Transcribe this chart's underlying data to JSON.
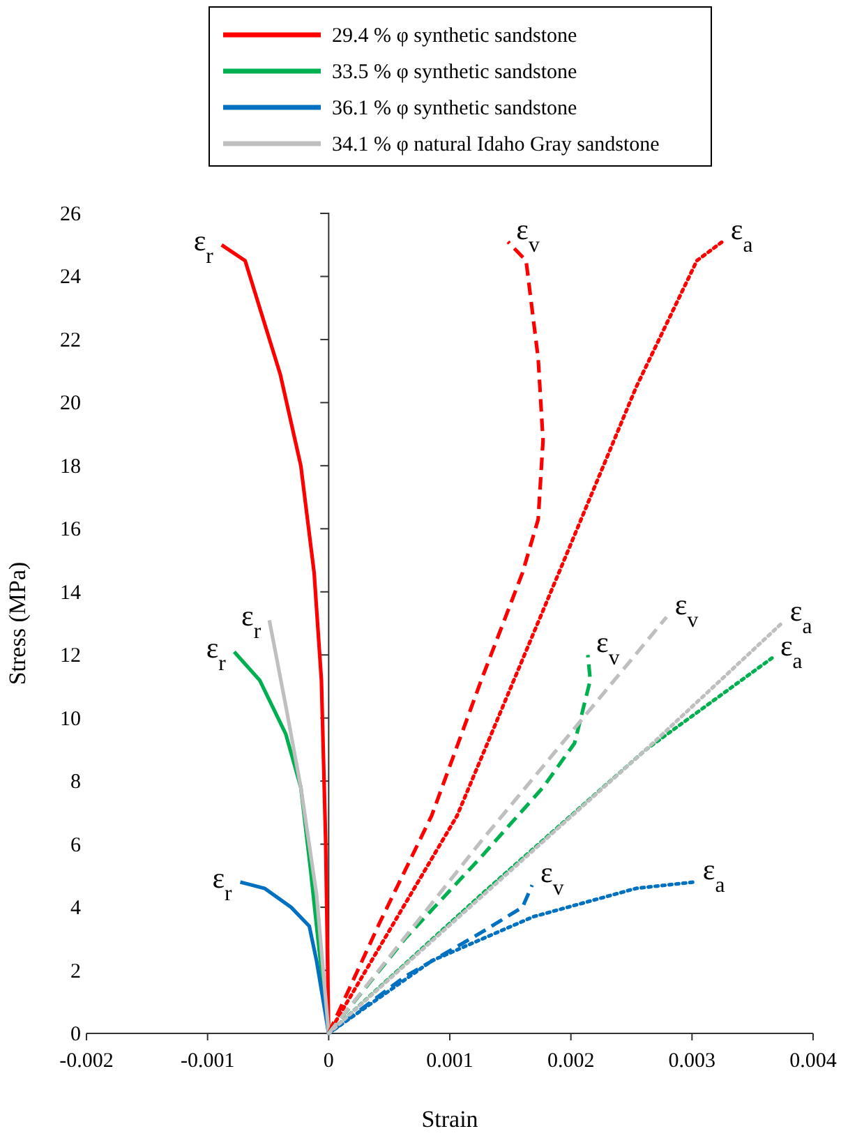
{
  "chart_data": {
    "type": "line",
    "xlabel": "Strain",
    "ylabel": "Stress (MPa)",
    "xlim": [
      -0.002,
      0.004
    ],
    "ylim": [
      0,
      26
    ],
    "xticks": [
      -0.002,
      -0.001,
      0,
      0.001,
      0.002,
      0.003,
      0.004
    ],
    "yticks": [
      0,
      2,
      4,
      6,
      8,
      10,
      12,
      14,
      16,
      18,
      20,
      22,
      24,
      26
    ],
    "grid": false,
    "legend": "top",
    "marker": "none",
    "series": [
      {
        "name": "29.4 % φ synthetic sandstone",
        "color": "#ff0000",
        "line_style": "solid",
        "x": [
          0,
          -2.5e-05,
          -6e-05,
          -0.00012,
          -0.00023,
          -0.0004,
          -0.00069,
          -0.000884
        ],
        "values": [
          0,
          6.1,
          11.2,
          14.6,
          18.0,
          20.9,
          24.5,
          25.0
        ]
      },
      {
        "name": "33.5 % φ synthetic sandstone",
        "color": "#00b050",
        "line_style": "solid",
        "x": [
          0,
          -8e-05,
          -0.00015,
          -0.00023,
          -0.000355,
          -0.00057,
          -0.00078
        ],
        "values": [
          0,
          2.7,
          5.2,
          7.8,
          9.5,
          11.2,
          12.1
        ]
      },
      {
        "name": "36.1 % φ synthetic sandstone",
        "color": "#0070c0",
        "line_style": "solid",
        "x": [
          0,
          -0.0001,
          -0.00016,
          -0.00031,
          -0.00053,
          -0.00073
        ],
        "values": [
          0,
          2.3,
          3.4,
          4.0,
          4.6,
          4.8
        ]
      },
      {
        "name": "34.1 % φ natural Idaho Gray sandstone",
        "color": "#bfbfbf",
        "line_style": "solid",
        "x": [
          0,
          -0.0001,
          -0.00023,
          -0.000355,
          -0.00049
        ],
        "values": [
          0,
          4.4,
          7.8,
          10.4,
          13.1
        ]
      },
      {
        "color": "#ff0000",
        "line_style": "dashed",
        "x": [
          0,
          0.00042,
          0.00085,
          0.00126,
          0.0016,
          0.00173,
          0.00177,
          0.00173,
          0.00163,
          0.00148
        ],
        "values": [
          0,
          3.5,
          6.9,
          11.2,
          14.6,
          16.3,
          18.8,
          21.4,
          24.5,
          25.1
        ]
      },
      {
        "color": "#ff0000",
        "line_style": "dotted",
        "x": [
          0,
          0.00106,
          0.0019,
          0.00254,
          0.00304,
          0.00325
        ],
        "values": [
          0,
          6.9,
          14.6,
          20.5,
          24.5,
          25.1
        ]
      },
      {
        "color": "#00b050",
        "line_style": "dashed",
        "x": [
          0,
          0.00063,
          0.00126,
          0.00177,
          0.00203,
          0.00216,
          0.00214
        ],
        "values": [
          0,
          3.0,
          5.6,
          7.8,
          9.2,
          11.2,
          12.0
        ]
      },
      {
        "color": "#00b050",
        "line_style": "dotted",
        "x": [
          0,
          0.00126,
          0.00262,
          0.00366
        ],
        "values": [
          0,
          4.4,
          9.0,
          11.9
        ]
      },
      {
        "color": "#0070c0",
        "line_style": "dashed",
        "x": [
          0,
          0.00063,
          0.00126,
          0.0016,
          0.00168
        ],
        "values": [
          0,
          1.8,
          3.2,
          4.0,
          4.7
        ]
      },
      {
        "color": "#0070c0",
        "line_style": "dotted",
        "x": [
          0,
          0.00085,
          0.00169,
          0.00254,
          0.00302
        ],
        "values": [
          0,
          2.3,
          3.7,
          4.6,
          4.8
        ]
      },
      {
        "color": "#bfbfbf",
        "line_style": "dashed",
        "x": [
          0,
          0.00126,
          0.00279
        ],
        "values": [
          0,
          6.1,
          13.2
        ]
      },
      {
        "color": "#bfbfbf",
        "line_style": "dotted",
        "x": [
          0,
          0.00262,
          0.00374
        ],
        "values": [
          0,
          9.0,
          13.0
        ]
      }
    ],
    "annotations": [
      {
        "text": "ε$_{r}$",
        "x": -0.000884,
        "y": 25.0
      },
      {
        "text": "ε$_{r}$",
        "x": -0.00049,
        "y": 13.1
      },
      {
        "text": "ε$_{r}$",
        "x": -0.00078,
        "y": 12.1
      },
      {
        "text": "ε$_{r}$",
        "x": -0.00073,
        "y": 4.8
      },
      {
        "text": "ε$_{v}$",
        "x": 0.00148,
        "y": 25.1
      },
      {
        "text": "ε$_{a}$",
        "x": 0.00325,
        "y": 25.1
      },
      {
        "text": "ε$_{v}$",
        "x": 0.00214,
        "y": 12.0
      },
      {
        "text": "ε$_{v}$",
        "x": 0.00279,
        "y": 13.2
      },
      {
        "text": "ε$_{a}$",
        "x": 0.00374,
        "y": 13.0
      },
      {
        "text": "ε$_{a}$",
        "x": 0.00366,
        "y": 11.9
      },
      {
        "text": "ε$_{v}$",
        "x": 0.00168,
        "y": 4.7
      },
      {
        "text": "ε$_{a}$",
        "x": 0.00302,
        "y": 4.8
      }
    ]
  }
}
